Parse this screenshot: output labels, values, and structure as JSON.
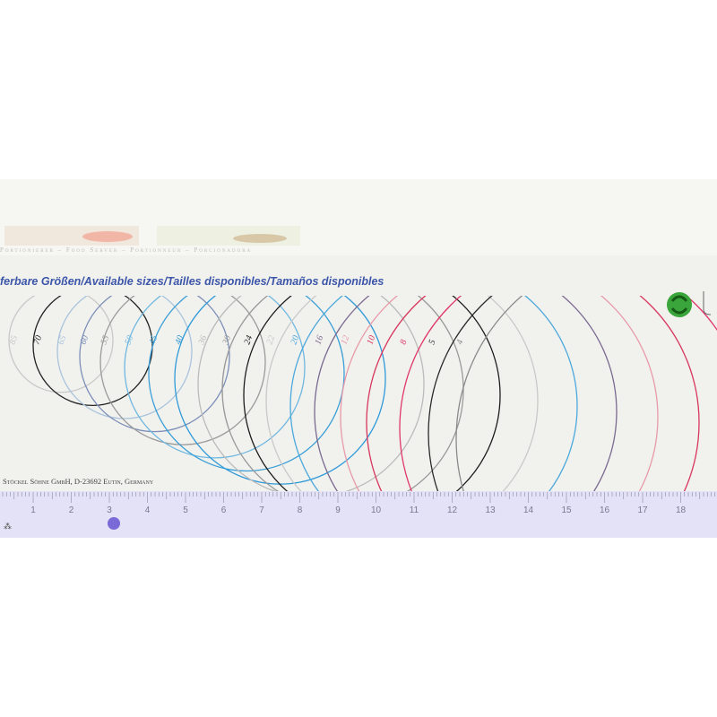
{
  "box": {
    "tagline": "Portionierer – Food Server – Portionneur – Porcionadora",
    "heading": "ferbare Größen/Available sizes/Tailles disponibles/Tamaños disponibles",
    "manufacturer": "Stöckel Söhne GmbH, D-23692 Eutin, Germany",
    "logo_text": "Der Grüne Punkt",
    "logo_color": "#3aa53a"
  },
  "sizes": [
    {
      "label": "85",
      "color": "#c8c8c8"
    },
    {
      "label": "70",
      "color": "#222222"
    },
    {
      "label": "65",
      "color": "#a9c4dc"
    },
    {
      "label": "60",
      "color": "#7d8fb8"
    },
    {
      "label": "55",
      "color": "#9a9a9a"
    },
    {
      "label": "50",
      "color": "#6fb8e0"
    },
    {
      "label": "45",
      "color": "#3a9fd6"
    },
    {
      "label": "40",
      "color": "#2f9ad8"
    },
    {
      "label": "36",
      "color": "#bbbbbb"
    },
    {
      "label": "30",
      "color": "#999999"
    },
    {
      "label": "24",
      "color": "#1c1c1c"
    },
    {
      "label": "22",
      "color": "#c9c9c9"
    },
    {
      "label": "20",
      "color": "#4aa8dc"
    },
    {
      "label": "16",
      "color": "#7a6a90"
    },
    {
      "label": "12",
      "color": "#e89aa8"
    },
    {
      "label": "10",
      "color": "#d8365c"
    },
    {
      "label": "8",
      "color": "#e03868"
    },
    {
      "label": "5",
      "color": "#2a2a2a"
    },
    {
      "label": "4",
      "color": "#8a8a8a"
    }
  ],
  "ruler": {
    "numbers": [
      "1",
      "2",
      "3",
      "4",
      "5",
      "6",
      "7",
      "8",
      "9",
      "10",
      "11",
      "12",
      "13",
      "14",
      "15",
      "16",
      "17",
      "18"
    ],
    "color": "#e4e2f6"
  }
}
